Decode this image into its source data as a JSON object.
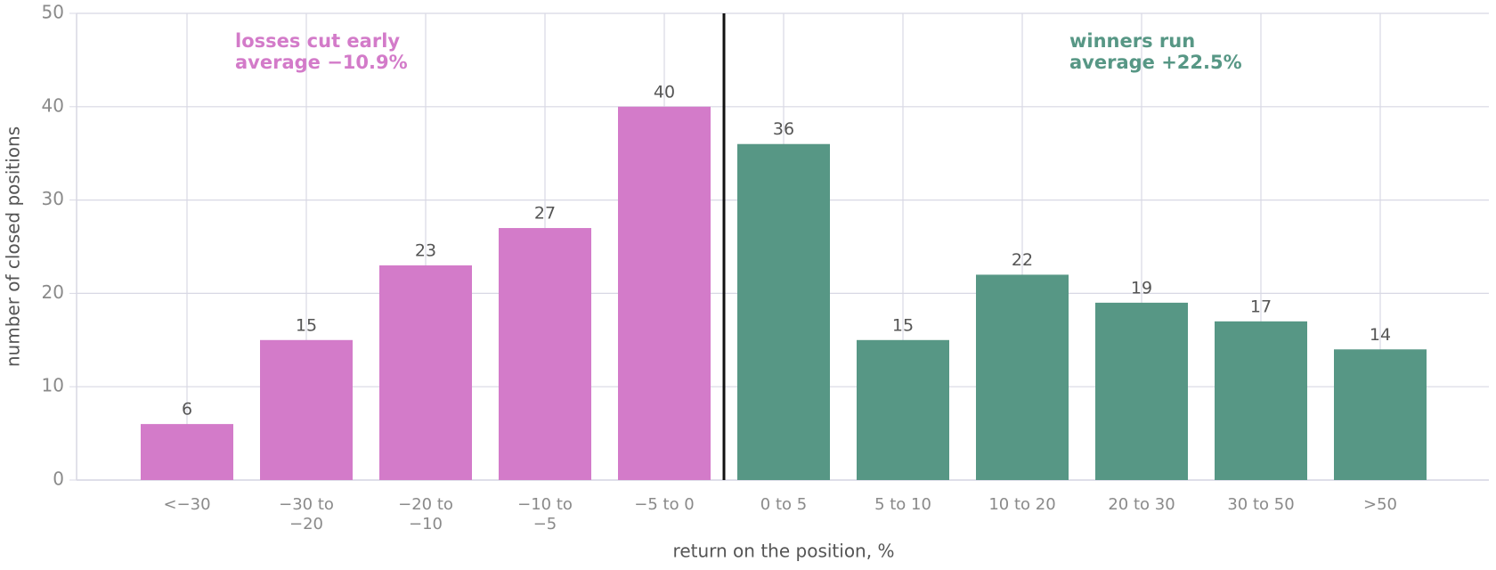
{
  "chart_data": {
    "type": "bar",
    "x_label": "return on the position, %",
    "y_label": "number of closed positions",
    "categories": [
      "<−30",
      "−30 to\n−20",
      "−20 to\n−10",
      "−10 to\n−5",
      "−5 to 0",
      "0 to 5",
      "5 to 10",
      "10 to 20",
      "20 to 30",
      "30 to 50",
      ">50"
    ],
    "values": [
      6,
      15,
      23,
      27,
      40,
      36,
      15,
      22,
      19,
      17,
      14
    ],
    "colors": [
      "#d37bc9",
      "#d37bc9",
      "#d37bc9",
      "#d37bc9",
      "#d37bc9",
      "#579785",
      "#579785",
      "#579785",
      "#579785",
      "#579785",
      "#579785"
    ],
    "ylim": [
      0,
      50
    ],
    "yticks": [
      0,
      10,
      20,
      30,
      40,
      50
    ],
    "grid": true,
    "annotations": [
      {
        "lines": [
          "losses cut early",
          "average −10.9%"
        ],
        "color": "#d37bc9"
      },
      {
        "lines": [
          "winners run",
          "average +22.5%"
        ],
        "color": "#579785"
      }
    ]
  }
}
